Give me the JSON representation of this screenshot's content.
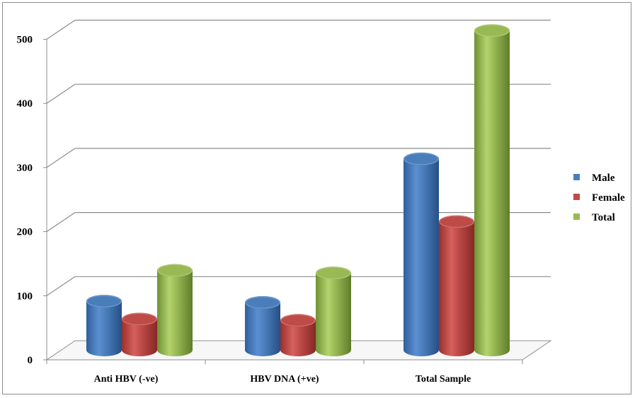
{
  "chart_data": {
    "type": "bar",
    "variant": "3d-cylinder",
    "categories": [
      "Anti HBV (-ve)",
      "HBV DNA (+ve)",
      "Total Sample"
    ],
    "series": [
      {
        "name": "Male",
        "values": [
          76,
          74,
          298
        ],
        "color": "#4a7ebb"
      },
      {
        "name": "Female",
        "values": [
          48,
          46,
          200
        ],
        "color": "#be4b48"
      },
      {
        "name": "Total",
        "values": [
          124,
          120,
          498
        ],
        "color": "#98b954"
      }
    ],
    "ylim": [
      0,
      500
    ],
    "yticks": [
      "0",
      "100",
      "200",
      "300",
      "400",
      "500"
    ],
    "grid": true,
    "legend": "right"
  }
}
